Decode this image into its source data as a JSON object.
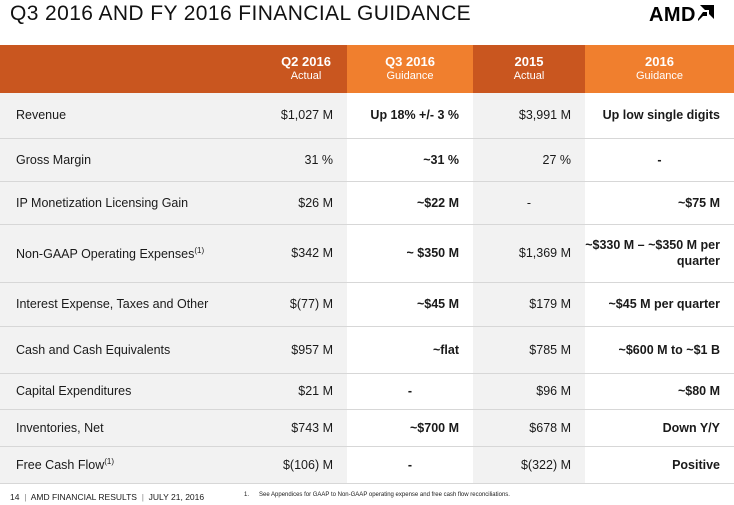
{
  "header": {
    "title": "Q3 2016 AND FY 2016 FINANCIAL GUIDANCE",
    "logo_text": "AMD"
  },
  "table": {
    "columns": [
      {
        "main": "Q2 2016",
        "sub": "Actual"
      },
      {
        "main": "Q3 2016",
        "sub": "Guidance"
      },
      {
        "main": "2015",
        "sub": "Actual"
      },
      {
        "main": "2016",
        "sub": "Guidance"
      }
    ],
    "rows": [
      {
        "label": "Revenue",
        "sup": "",
        "cells": [
          "$1,027 M",
          "Up 18% +/- 3 %",
          "$3,991 M",
          "Up low single digits"
        ]
      },
      {
        "label": "Gross Margin",
        "sup": "",
        "cells": [
          "31 %",
          "~31 %",
          "27 %",
          "-"
        ]
      },
      {
        "label": "IP Monetization Licensing Gain",
        "sup": "",
        "cells": [
          "$26 M",
          "~$22 M",
          "-",
          "~$75 M"
        ]
      },
      {
        "label": "Non-GAAP Operating Expenses",
        "sup": "(1)",
        "cells": [
          "$342 M",
          "~ $350 M",
          "$1,369 M",
          "~$330 M – ~$350 M per quarter"
        ]
      },
      {
        "label": "Interest Expense, Taxes and Other",
        "sup": "",
        "cells": [
          "$(77) M",
          "~$45 M",
          "$179 M",
          "~$45 M per quarter"
        ]
      },
      {
        "label": "Cash and Cash Equivalents",
        "sup": "",
        "cells": [
          "$957 M",
          "~flat",
          "$785 M",
          "~$600 M to ~$1 B"
        ]
      },
      {
        "label": "Capital Expenditures",
        "sup": "",
        "cells": [
          "$21 M",
          "-",
          "$96 M",
          "~$80 M"
        ]
      },
      {
        "label": "Inventories, Net",
        "sup": "",
        "cells": [
          "$743 M",
          "~$700 M",
          "$678 M",
          "Down Y/Y"
        ]
      },
      {
        "label": "Free Cash Flow",
        "sup": "(1)",
        "cells": [
          "$(106) M",
          "-",
          "$(322) M",
          "Positive"
        ]
      }
    ]
  },
  "footer": {
    "page": "14",
    "separator": "|",
    "section": "AMD FINANCIAL RESULTS",
    "date": "JULY 21, 2016",
    "footnote_num": "1.",
    "footnote_text": "See Appendices for GAAP to Non-GAAP operating expense and free cash flow reconciliations."
  }
}
